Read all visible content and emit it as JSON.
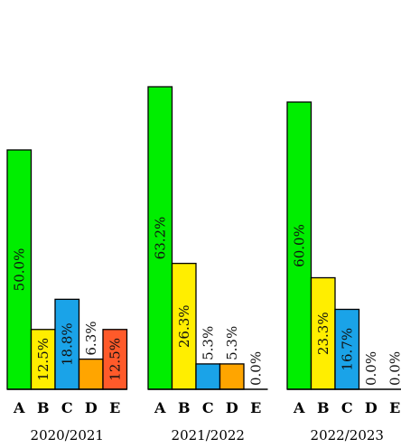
{
  "chart_data": [
    {
      "type": "bar",
      "group_label": "2020/2021",
      "categories": [
        "A",
        "B",
        "C",
        "D",
        "E"
      ],
      "values": [
        50.0,
        12.5,
        18.8,
        6.3,
        12.5
      ],
      "labels": [
        "50.0%",
        "12.5%",
        "18.8%",
        "6.3%",
        "12.5%"
      ],
      "ylim": [
        0,
        65
      ]
    },
    {
      "type": "bar",
      "group_label": "2021/2022",
      "categories": [
        "A",
        "B",
        "C",
        "D",
        "E"
      ],
      "values": [
        63.2,
        26.3,
        5.3,
        5.3,
        0.0
      ],
      "labels": [
        "63.2%",
        "26.3%",
        "5.3%",
        "5.3%",
        "0.0%"
      ],
      "ylim": [
        0,
        65
      ]
    },
    {
      "type": "bar",
      "group_label": "2022/2023",
      "categories": [
        "A",
        "B",
        "C",
        "D",
        "E"
      ],
      "values": [
        60.0,
        23.3,
        16.7,
        0.0,
        0.0
      ],
      "labels": [
        "60.0%",
        "23.3%",
        "16.7%",
        "0.0%",
        "0.0%"
      ],
      "ylim": [
        0,
        65
      ]
    }
  ],
  "colors": {
    "A": "#00ee00",
    "B": "#ffee00",
    "C": "#1aa3e8",
    "D": "#ffa500",
    "E": "#ff5a2a"
  }
}
